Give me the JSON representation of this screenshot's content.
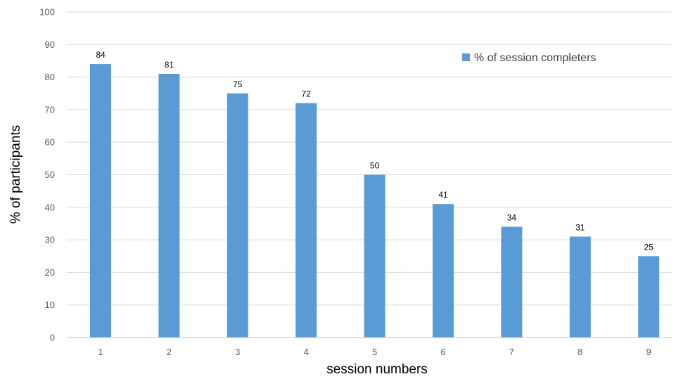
{
  "chart_data": {
    "type": "bar",
    "categories": [
      "1",
      "2",
      "3",
      "4",
      "5",
      "6",
      "7",
      "8",
      "9"
    ],
    "series": [
      {
        "name": "% of session completers",
        "values": [
          84,
          81,
          75,
          72,
          50,
          41,
          34,
          31,
          25
        ]
      }
    ],
    "title": "",
    "xlabel": "session numbers",
    "ylabel": "% of participants",
    "ylim": [
      0,
      100
    ],
    "yticks": [
      "0",
      "10",
      "20",
      "30",
      "40",
      "50",
      "60",
      "70",
      "80",
      "90",
      "100"
    ],
    "grid": true,
    "legend_position": "top-right",
    "bar_color": "#5b9bd5",
    "data_labels": true
  }
}
